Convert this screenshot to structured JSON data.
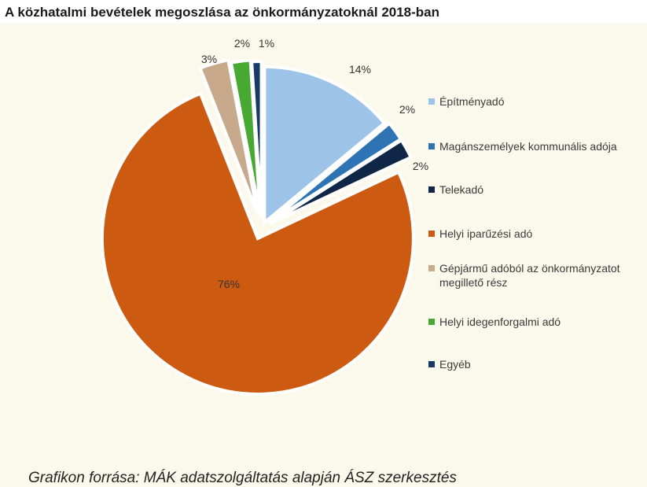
{
  "chart_data": {
    "type": "pie",
    "title": "A közhatalmi bevételek megoszlása az önkormányzatoknál 2018-ban",
    "slices": [
      {
        "name": "Építményadó",
        "value": 14,
        "label": "14%",
        "color": "#9ec3e8"
      },
      {
        "name": "Magánszemélyek kommunális adója",
        "value": 2,
        "label": "2%",
        "color": "#2e74b5"
      },
      {
        "name": "Telekadó",
        "value": 2,
        "label": "2%",
        "color": "#0f2647"
      },
      {
        "name": "Helyi iparűzési adó",
        "value": 76,
        "label": "76%",
        "color": "#cc5a10"
      },
      {
        "name": "Gépjármű adóból az önkormányzatot megillető rész",
        "value": 3,
        "label": "3%",
        "color": "#c9a98c"
      },
      {
        "name": "Helyi idegenforgalmi adó",
        "value": 2,
        "label": "2%",
        "color": "#47a832"
      },
      {
        "name": "Egyéb",
        "value": 1,
        "label": "1%",
        "color": "#173a66"
      }
    ],
    "legend_position": "right"
  },
  "caption": "Grafikon forrása: MÁK adatszolgáltatás alapján ÁSZ szerkesztés"
}
